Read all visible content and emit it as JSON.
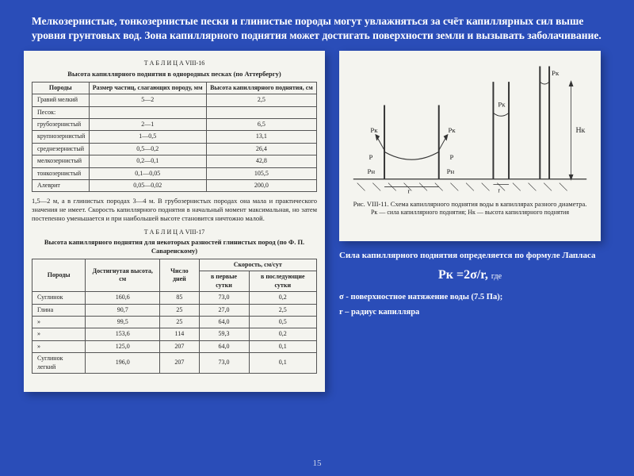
{
  "intro": "Мелкозернистые, тонкозернистые пески и глинистые породы могут увлажняться за счёт капиллярных сил выше уровня грунтовых вод. Зона капиллярного поднятия может достигать поверхности земли и  вызывать заболачивание.",
  "table1": {
    "caption_small": "Т А Б Л И Ц А  VIII-16",
    "caption": "Высота капиллярного поднятия в однородных песках (по Аттербергу)",
    "headers": [
      "Породы",
      "Размер частиц, слагающих породу, мм",
      "Высота капиллярного поднятия, см"
    ],
    "rows": [
      [
        "Гравий мелкий",
        "5—2",
        "2,5"
      ],
      [
        "Песок:",
        "",
        ""
      ],
      [
        "  грубозернистый",
        "2—1",
        "6,5"
      ],
      [
        "  крупнозернистый",
        "1—0,5",
        "13,1"
      ],
      [
        "  среднезернистый",
        "0,5—0,2",
        "26,4"
      ],
      [
        "  мелкозернистый",
        "0,2—0,1",
        "42,8"
      ],
      [
        "  тонкозернистый",
        "0,1—0,05",
        "105,5"
      ],
      [
        "Алеврит",
        "0,05—0,02",
        "200,0"
      ]
    ]
  },
  "paragraph": "1,5—2 м, а в глинистых породах 3—4 м. В грубозернистых породах она мала и практического значения не имеет. Скорость капиллярного поднятия в начальный момент максимальная, но затем постепенно уменьшается и при наибольшей высоте становится ничтожно малой.",
  "table2": {
    "caption_small": "Т А Б Л И Ц А  VIII-17",
    "caption": "Высота капиллярного поднятия для некоторых разностей глинистых пород (по Ф. П. Саваренскому)",
    "headers": [
      "Породы",
      "Достигнутая высота, см",
      "Число дней",
      "в первые сутки",
      "в последующие сутки"
    ],
    "top_header": "Скорость, см/сут",
    "rows": [
      [
        "Суглинок",
        "160,6",
        "85",
        "73,0",
        "0,2"
      ],
      [
        "Глина",
        "90,7",
        "25",
        "27,0",
        "2,5"
      ],
      [
        "  »",
        "99,5",
        "25",
        "64,0",
        "0,5"
      ],
      [
        "  »",
        "153,6",
        "114",
        "59,3",
        "0,2"
      ],
      [
        "  »",
        "125,0",
        "207",
        "64,0",
        "0,1"
      ],
      [
        "Суглинок легкий",
        "196,0",
        "207",
        "73,0",
        "0,1"
      ]
    ]
  },
  "diagram": {
    "caption": "Рис. VIII-11. Схема капиллярного поднятия воды в капиллярах разного диаметра.",
    "sub": "Pк — сила капиллярного поднятия;  Hк — высота капиллярного поднятия",
    "labels": {
      "Pk": "Pк",
      "P": "P",
      "Pn": "Pн",
      "r": "r",
      "Hk": "Hк"
    }
  },
  "formula_intro": "Сила капиллярного поднятия определяется по формуле Лапласа",
  "formula": {
    "lhs": "Pк",
    "rhs": " =2σ/r, ",
    "where": "где"
  },
  "defs": {
    "sigma": "σ   - поверхностное натяжение воды (7.5 Па);",
    "r": "r – радиус капилляра"
  },
  "pagenum": "15",
  "colors": {
    "bg": "#2a4db8",
    "panel": "#f4f4ef",
    "text_light": "#ffffff",
    "text_dark": "#222222"
  }
}
